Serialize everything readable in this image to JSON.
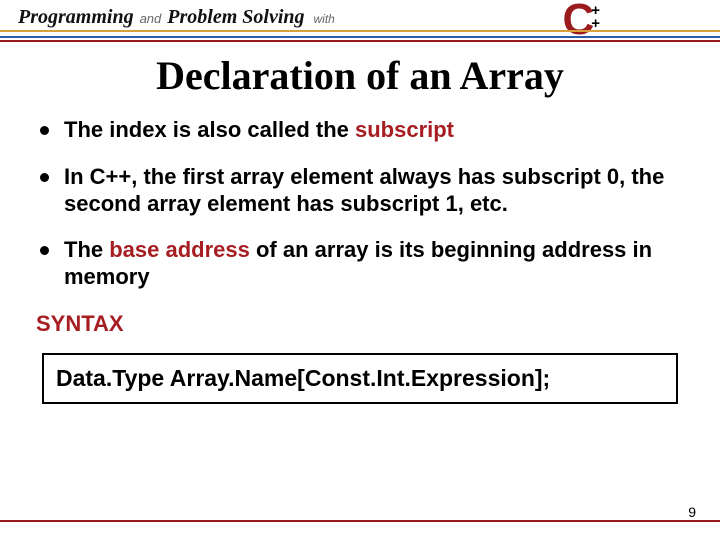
{
  "header": {
    "programming": "Programming",
    "and": "and",
    "problem_solving": "Problem Solving",
    "with": "with",
    "cpp_c": "C",
    "cpp_plus": "+",
    "line_colors": [
      "#d9a03a",
      "#2e5aa8",
      "#9a1b1e"
    ],
    "line_heights": [
      2,
      2,
      2
    ],
    "line_offsets": [
      30,
      36,
      40
    ]
  },
  "title": "Declaration of an Array",
  "bullets": [
    {
      "pre": "The index is also called the ",
      "hl": "subscript",
      "post": ""
    },
    {
      "pre": "In C++, the first array element always has subscript 0,  the second array element has subscript 1, etc.",
      "hl": "",
      "post": ""
    },
    {
      "pre": "The ",
      "hl": "base address",
      "post": " of an array is its beginning address in memory"
    }
  ],
  "syntax_label": "SYNTAX",
  "syntax_text": "Data.Type  Array.Name[Const.Int.Expression];",
  "page_number": "9",
  "colors": {
    "highlight": "#a61e22",
    "rule": "#9a1b1e"
  }
}
